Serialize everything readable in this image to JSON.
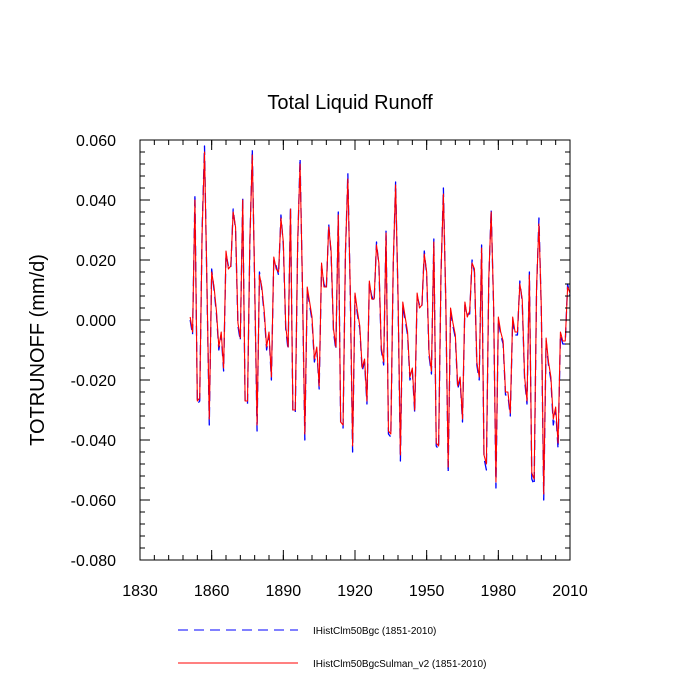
{
  "chart_data": {
    "type": "line",
    "title": "Total Liquid Runoff",
    "xlabel": "",
    "ylabel": "TOTRUNOFF  (mm/d)",
    "xlim": [
      1830,
      2010
    ],
    "ylim": [
      -0.08,
      0.06
    ],
    "xticks": [
      1830,
      1860,
      1890,
      1920,
      1950,
      1980,
      2010
    ],
    "xtick_labels": [
      "1830",
      "1860",
      "1890",
      "1920",
      "1950",
      "1980",
      "2010"
    ],
    "yticks": [
      -0.08,
      -0.06,
      -0.04,
      -0.02,
      0.0,
      0.02,
      0.04,
      0.06
    ],
    "ytick_labels": [
      "-0.080",
      "-0.060",
      "-0.040",
      "-0.020",
      "0.000",
      "0.020",
      "0.040",
      "0.060"
    ],
    "grid": false,
    "legend_position": "bottom",
    "series": [
      {
        "name": "IHistClm50Bgc (1851-2010)",
        "color": "#0000ff",
        "dash": "dashed",
        "x": [
          1851,
          1852,
          1853,
          1854,
          1855,
          1856,
          1857,
          1858,
          1859,
          1860,
          1861,
          1862,
          1863,
          1864,
          1865,
          1866,
          1867,
          1868,
          1869,
          1870,
          1871,
          1872,
          1873,
          1874,
          1875,
          1876,
          1877,
          1878,
          1879,
          1880,
          1881,
          1882,
          1883,
          1884,
          1885,
          1886,
          1887,
          1888,
          1889,
          1890,
          1891,
          1892,
          1893,
          1894,
          1895,
          1896,
          1897,
          1898,
          1899,
          1900,
          1901,
          1902,
          1903,
          1904,
          1905,
          1906,
          1907,
          1908,
          1909,
          1910,
          1911,
          1912,
          1913,
          1914,
          1915,
          1916,
          1917,
          1918,
          1919,
          1920,
          1921,
          1922,
          1923,
          1924,
          1925,
          1926,
          1927,
          1928,
          1929,
          1930,
          1931,
          1932,
          1933,
          1934,
          1935,
          1936,
          1937,
          1938,
          1939,
          1940,
          1941,
          1942,
          1943,
          1944,
          1945,
          1946,
          1947,
          1948,
          1949,
          1950,
          1951,
          1952,
          1953,
          1954,
          1955,
          1956,
          1957,
          1958,
          1959,
          1960,
          1961,
          1962,
          1963,
          1964,
          1965,
          1966,
          1967,
          1968,
          1969,
          1970,
          1971,
          1972,
          1973,
          1974,
          1975,
          1976,
          1977,
          1978,
          1979,
          1980,
          1981,
          1982,
          1983,
          1984,
          1985,
          1986,
          1987,
          1988,
          1989,
          1990,
          1991,
          1992,
          1993,
          1994,
          1995,
          1996,
          1997,
          1998,
          1999,
          2000,
          2001,
          2002,
          2003,
          2004,
          2005,
          2006,
          2007,
          2008,
          2009,
          2010
        ],
        "y": [
          0.0,
          -0.005,
          0.042,
          -0.028,
          -0.027,
          0.03,
          0.058,
          0.012,
          -0.035,
          0.017,
          0.01,
          0.002,
          -0.01,
          -0.005,
          -0.017,
          0.022,
          0.018,
          0.017,
          0.037,
          0.03,
          -0.002,
          -0.007,
          0.041,
          -0.028,
          -0.028,
          0.026,
          0.057,
          0.012,
          -0.037,
          0.016,
          0.01,
          0.002,
          -0.01,
          -0.005,
          -0.02,
          0.02,
          0.018,
          0.015,
          0.035,
          0.025,
          -0.003,
          -0.01,
          0.038,
          -0.031,
          -0.031,
          0.025,
          0.054,
          0.011,
          -0.04,
          0.01,
          0.005,
          0.0,
          -0.014,
          -0.01,
          -0.023,
          0.018,
          0.012,
          0.01,
          0.032,
          0.022,
          -0.004,
          -0.01,
          0.036,
          -0.035,
          -0.036,
          0.022,
          0.049,
          0.01,
          -0.044,
          0.008,
          0.002,
          -0.003,
          -0.017,
          -0.014,
          -0.028,
          0.012,
          0.008,
          0.006,
          0.026,
          0.018,
          -0.01,
          -0.015,
          0.03,
          -0.038,
          -0.039,
          0.018,
          0.046,
          0.008,
          -0.047,
          0.005,
          0.0,
          -0.005,
          -0.02,
          -0.017,
          -0.031,
          0.008,
          0.005,
          0.004,
          0.023,
          0.015,
          -0.012,
          -0.018,
          0.027,
          -0.042,
          -0.043,
          0.015,
          0.044,
          0.006,
          -0.051,
          0.003,
          -0.002,
          -0.006,
          -0.023,
          -0.02,
          -0.034,
          0.005,
          0.002,
          0.002,
          0.02,
          0.016,
          -0.015,
          -0.02,
          0.025,
          -0.046,
          -0.05,
          0.013,
          0.037,
          0.005,
          -0.056,
          0.0,
          -0.005,
          -0.008,
          -0.025,
          -0.025,
          -0.032,
          0.0,
          -0.005,
          -0.005,
          0.013,
          0.006,
          -0.02,
          -0.028,
          0.016,
          -0.053,
          -0.055,
          0.01,
          0.034,
          0.003,
          -0.06,
          -0.007,
          -0.015,
          -0.02,
          -0.035,
          -0.03,
          -0.043,
          -0.005,
          -0.008,
          -0.008,
          0.012,
          0.008
        ]
      },
      {
        "name": "IHistClm50BgcSulman_v2 (1851-2010)",
        "color": "#ff0000",
        "dash": "solid",
        "x": [
          1851,
          1852,
          1853,
          1854,
          1855,
          1856,
          1857,
          1858,
          1859,
          1860,
          1861,
          1862,
          1863,
          1864,
          1865,
          1866,
          1867,
          1868,
          1869,
          1870,
          1871,
          1872,
          1873,
          1874,
          1875,
          1876,
          1877,
          1878,
          1879,
          1880,
          1881,
          1882,
          1883,
          1884,
          1885,
          1886,
          1887,
          1888,
          1889,
          1890,
          1891,
          1892,
          1893,
          1894,
          1895,
          1896,
          1897,
          1898,
          1899,
          1900,
          1901,
          1902,
          1903,
          1904,
          1905,
          1906,
          1907,
          1908,
          1909,
          1910,
          1911,
          1912,
          1913,
          1914,
          1915,
          1916,
          1917,
          1918,
          1919,
          1920,
          1921,
          1922,
          1923,
          1924,
          1925,
          1926,
          1927,
          1928,
          1929,
          1930,
          1931,
          1932,
          1933,
          1934,
          1935,
          1936,
          1937,
          1938,
          1939,
          1940,
          1941,
          1942,
          1943,
          1944,
          1945,
          1946,
          1947,
          1948,
          1949,
          1950,
          1951,
          1952,
          1953,
          1954,
          1955,
          1956,
          1957,
          1958,
          1959,
          1960,
          1961,
          1962,
          1963,
          1964,
          1965,
          1966,
          1967,
          1968,
          1969,
          1970,
          1971,
          1972,
          1973,
          1974,
          1975,
          1976,
          1977,
          1978,
          1979,
          1980,
          1981,
          1982,
          1983,
          1984,
          1985,
          1986,
          1987,
          1988,
          1989,
          1990,
          1991,
          1992,
          1993,
          1994,
          1995,
          1996,
          1997,
          1998,
          1999,
          2000,
          2001,
          2002,
          2003,
          2004,
          2005,
          2006,
          2007,
          2008,
          2009,
          2010
        ],
        "y": [
          0.001,
          -0.004,
          0.04,
          -0.027,
          -0.026,
          0.029,
          0.056,
          0.013,
          -0.033,
          0.016,
          0.011,
          0.003,
          -0.009,
          -0.004,
          -0.016,
          0.023,
          0.017,
          0.018,
          0.036,
          0.031,
          -0.001,
          -0.006,
          0.04,
          -0.027,
          -0.027,
          0.027,
          0.055,
          0.013,
          -0.035,
          0.015,
          0.011,
          0.003,
          -0.009,
          -0.004,
          -0.019,
          0.021,
          0.017,
          0.016,
          0.034,
          0.026,
          -0.002,
          -0.009,
          0.037,
          -0.03,
          -0.03,
          0.026,
          0.052,
          0.012,
          -0.038,
          0.011,
          0.006,
          0.001,
          -0.013,
          -0.009,
          -0.022,
          0.019,
          0.011,
          0.011,
          0.031,
          0.023,
          -0.003,
          -0.009,
          0.035,
          -0.034,
          -0.035,
          0.023,
          0.047,
          0.011,
          -0.042,
          0.009,
          0.003,
          -0.002,
          -0.016,
          -0.013,
          -0.027,
          0.013,
          0.007,
          0.007,
          0.025,
          0.019,
          -0.009,
          -0.014,
          0.029,
          -0.037,
          -0.038,
          0.019,
          0.045,
          0.009,
          -0.045,
          0.006,
          0.001,
          -0.004,
          -0.019,
          -0.016,
          -0.03,
          0.009,
          0.004,
          0.005,
          0.022,
          0.016,
          -0.011,
          -0.017,
          0.026,
          -0.041,
          -0.042,
          0.016,
          0.042,
          0.007,
          -0.049,
          0.004,
          -0.001,
          -0.005,
          -0.022,
          -0.019,
          -0.033,
          0.006,
          0.001,
          0.003,
          0.019,
          0.017,
          -0.014,
          -0.019,
          0.024,
          -0.045,
          -0.048,
          0.014,
          0.036,
          0.006,
          -0.054,
          0.001,
          -0.004,
          -0.007,
          -0.024,
          -0.024,
          -0.031,
          0.001,
          -0.004,
          -0.004,
          0.012,
          0.007,
          -0.019,
          -0.027,
          0.015,
          -0.051,
          -0.053,
          0.011,
          0.032,
          0.004,
          -0.058,
          -0.006,
          -0.014,
          -0.019,
          -0.033,
          -0.029,
          -0.041,
          -0.004,
          -0.007,
          -0.007,
          0.011,
          0.009
        ]
      }
    ]
  }
}
